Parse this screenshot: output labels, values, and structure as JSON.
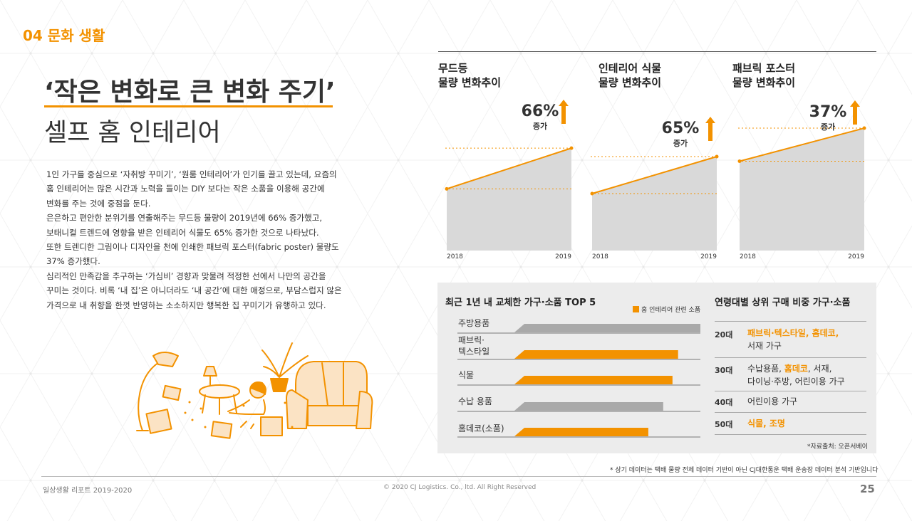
{
  "header": {
    "section_label": "04 문화 생활"
  },
  "title": {
    "line1": "‘작은 변화로 큰 변화 주기’",
    "line2": "셀프 홈 인테리어"
  },
  "body_paragraphs": [
    "1인 가구를 중심으로 ‘자취방 꾸미기’, ‘원룸 인테리어’가 인기를 끌고 있는데, 요즘의",
    "홈 인테리어는 많은 시간과 노력을 들이는 DIY 보다는 작은 소품을 이용해 공간에",
    "변화를 주는 것에 중점을 둔다.",
    "은은하고 편안한 분위기를 연출해주는 무드등 물량이 2019년에 66% 증가했고,",
    "보태니컬 트렌드에 영향을 받은 인테리어 식물도 65% 증가한 것으로 나타났다.",
    "또한 트렌디한 그림이나 디자인을 천에 인쇄한 패브릭 포스터(fabric poster) 물량도",
    "37% 증가했다.",
    "심리적인 만족감을 추구하는 ‘가심비’ 경향과 맞물려 적정한 선에서 나만의 공간을",
    "꾸미는 것이다. 비록 ‘내 집’은 아니더라도 ‘내 공간’에 대한 애정으로, 부담스럽지 않은",
    "가격으로 내 취향을 한껏 반영하는 소소하지만 행복한 집 꾸미기가 유행하고 있다."
  ],
  "chart_data": [
    {
      "type": "area",
      "title": "무드등 물량 변화추이",
      "title_lines": [
        "무드등",
        "물량 변화추이"
      ],
      "categories": [
        "2018",
        "2019"
      ],
      "values": [
        100,
        166
      ],
      "ylim": [
        0,
        180
      ],
      "change_label": "66%",
      "change_sub": "증가"
    },
    {
      "type": "area",
      "title": "인테리어 식물 물량 변화추이",
      "title_lines": [
        "인테리어 식물",
        "물량 변화추이"
      ],
      "categories": [
        "2018",
        "2019"
      ],
      "values": [
        100,
        165
      ],
      "ylim": [
        0,
        200
      ],
      "change_label": "65%",
      "change_sub": "증가"
    },
    {
      "type": "area",
      "title": "패브릭 포스터 물량 변화추이",
      "title_lines": [
        "패브릭 포스터",
        "물량 변화추이"
      ],
      "categories": [
        "2018",
        "2019"
      ],
      "values": [
        100,
        137
      ],
      "ylim": [
        0,
        145
      ],
      "change_label": "37%",
      "change_sub": "증가"
    },
    {
      "type": "bar",
      "title": "최근 1년 내 교체한 가구·소품 TOP 5",
      "legend": "홈 인테리어 관련 소품",
      "categories": [
        "주방용품",
        "패브릭·텍스타일",
        "식물",
        "수납 용품",
        "홈데코(소품)"
      ],
      "category_lines": [
        [
          "주방용품"
        ],
        [
          "패브릭·",
          "텍스타일"
        ],
        [
          "식물"
        ],
        [
          "수납 용품"
        ],
        [
          "홈데코(소품)"
        ]
      ],
      "values": [
        100,
        88,
        85,
        80,
        72
      ],
      "highlight": [
        false,
        true,
        true,
        false,
        true
      ],
      "xlim": [
        0,
        100
      ]
    }
  ],
  "age_table": {
    "title": "연령대별 상위 구매 비중 가구·소품",
    "rows": [
      {
        "age": "20대",
        "lines": [
          [
            {
              "t": "패브릭·텍스타일, 홈데코,",
              "hl": true
            }
          ],
          [
            {
              "t": "서재 가구",
              "hl": false
            }
          ]
        ]
      },
      {
        "age": "30대",
        "lines": [
          [
            {
              "t": "수납용품, ",
              "hl": false
            },
            {
              "t": "홈데코",
              "hl": true
            },
            {
              "t": ", 서재,",
              "hl": false
            }
          ],
          [
            {
              "t": "다이닝·주방, 어린이용 가구",
              "hl": false
            }
          ]
        ]
      },
      {
        "age": "40대",
        "lines": [
          [
            {
              "t": "어린이용 가구",
              "hl": false
            }
          ]
        ]
      },
      {
        "age": "50대",
        "lines": [
          [
            {
              "t": "식물, 조명",
              "hl": true
            }
          ]
        ]
      }
    ],
    "source": "*자료출처:  오픈서베이"
  },
  "footnote": "* 상기 데이터는 택배 물량 전체 데이터 기반이 아닌 CJ대한통운 택배 운송장 데이터 분석 기반입니다",
  "footer": {
    "left": "일상생활 리포트 2019-2020",
    "center": "© 2020 CJ Logistics. Co., ltd. All Right Reserved",
    "page": "25"
  },
  "colors": {
    "accent": "#f39200",
    "area": "#d9d9d9",
    "bar_gray": "#a9a9a9",
    "panel": "#ececec"
  },
  "illustration": {
    "icon": "home-interior-illustration-icon"
  }
}
